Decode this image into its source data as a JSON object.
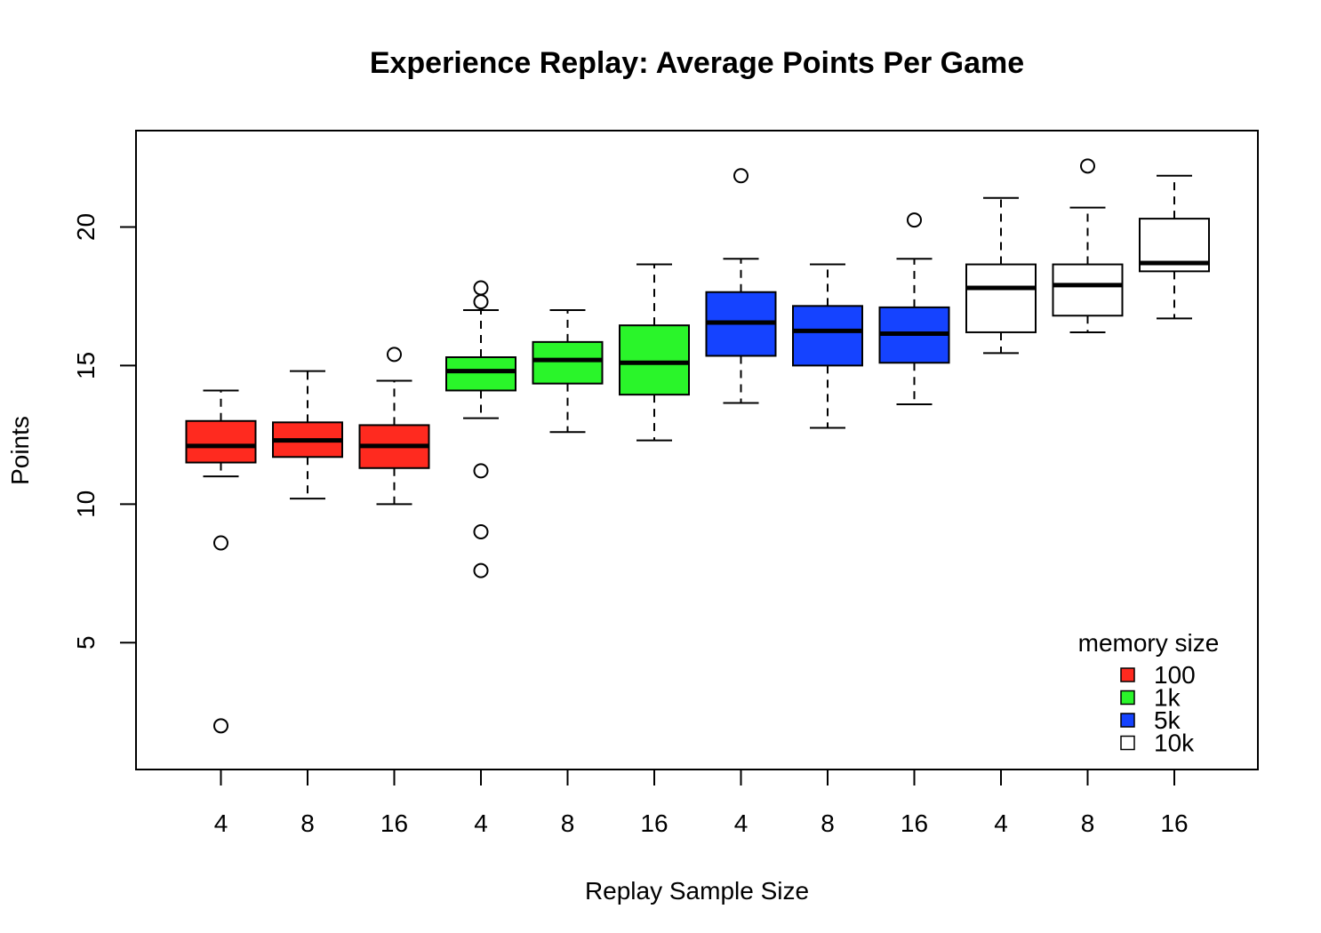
{
  "chart_data": {
    "type": "boxplot",
    "title": "Experience Replay: Average Points Per Game",
    "xlabel": "Replay Sample Size",
    "ylabel": "Points",
    "ylim": [
      1.0,
      22.9
    ],
    "yticks": [
      5,
      10,
      15,
      20
    ],
    "grid": false,
    "legend": {
      "title": "memory size",
      "placement": "bottom-right",
      "entries": [
        {
          "label": "100",
          "color": "#ff2a1f"
        },
        {
          "label": "1k",
          "color": "#2af52a"
        },
        {
          "label": "5k",
          "color": "#1543ff"
        },
        {
          "label": "10k",
          "color": "#ffffff"
        }
      ]
    },
    "boxes": [
      {
        "category": "4",
        "group": "100",
        "min": 11.0,
        "q1": 11.5,
        "median": 12.1,
        "q3": 13.0,
        "max": 14.1,
        "outliers": [
          8.6,
          2.0
        ]
      },
      {
        "category": "8",
        "group": "100",
        "min": 10.2,
        "q1": 11.7,
        "median": 12.3,
        "q3": 12.95,
        "max": 14.8,
        "outliers": []
      },
      {
        "category": "16",
        "group": "100",
        "min": 10.0,
        "q1": 11.3,
        "median": 12.1,
        "q3": 12.85,
        "max": 14.45,
        "outliers": [
          15.4
        ]
      },
      {
        "category": "4",
        "group": "1k",
        "min": 13.1,
        "q1": 14.1,
        "median": 14.8,
        "q3": 15.3,
        "max": 17.0,
        "outliers": [
          17.8,
          17.3,
          11.2,
          9.0,
          7.6
        ]
      },
      {
        "category": "8",
        "group": "1k",
        "min": 12.6,
        "q1": 14.35,
        "median": 15.2,
        "q3": 15.85,
        "max": 17.0,
        "outliers": []
      },
      {
        "category": "16",
        "group": "1k",
        "min": 12.3,
        "q1": 13.95,
        "median": 15.1,
        "q3": 16.45,
        "max": 18.65,
        "outliers": []
      },
      {
        "category": "4",
        "group": "5k",
        "min": 13.65,
        "q1": 15.35,
        "median": 16.55,
        "q3": 17.65,
        "max": 18.85,
        "outliers": [
          21.85
        ]
      },
      {
        "category": "8",
        "group": "5k",
        "min": 12.75,
        "q1": 15.0,
        "median": 16.25,
        "q3": 17.15,
        "max": 18.65,
        "outliers": []
      },
      {
        "category": "16",
        "group": "5k",
        "min": 13.6,
        "q1": 15.1,
        "median": 16.15,
        "q3": 17.1,
        "max": 18.85,
        "outliers": [
          20.25
        ]
      },
      {
        "category": "4",
        "group": "10k",
        "min": 15.45,
        "q1": 16.2,
        "median": 17.8,
        "q3": 18.65,
        "max": 21.05,
        "outliers": []
      },
      {
        "category": "8",
        "group": "10k",
        "min": 16.2,
        "q1": 16.8,
        "median": 17.9,
        "q3": 18.65,
        "max": 20.7,
        "outliers": [
          22.2
        ]
      },
      {
        "category": "16",
        "group": "10k",
        "min": 16.7,
        "q1": 18.4,
        "median": 18.7,
        "q3": 20.3,
        "max": 21.85,
        "outliers": []
      }
    ]
  }
}
